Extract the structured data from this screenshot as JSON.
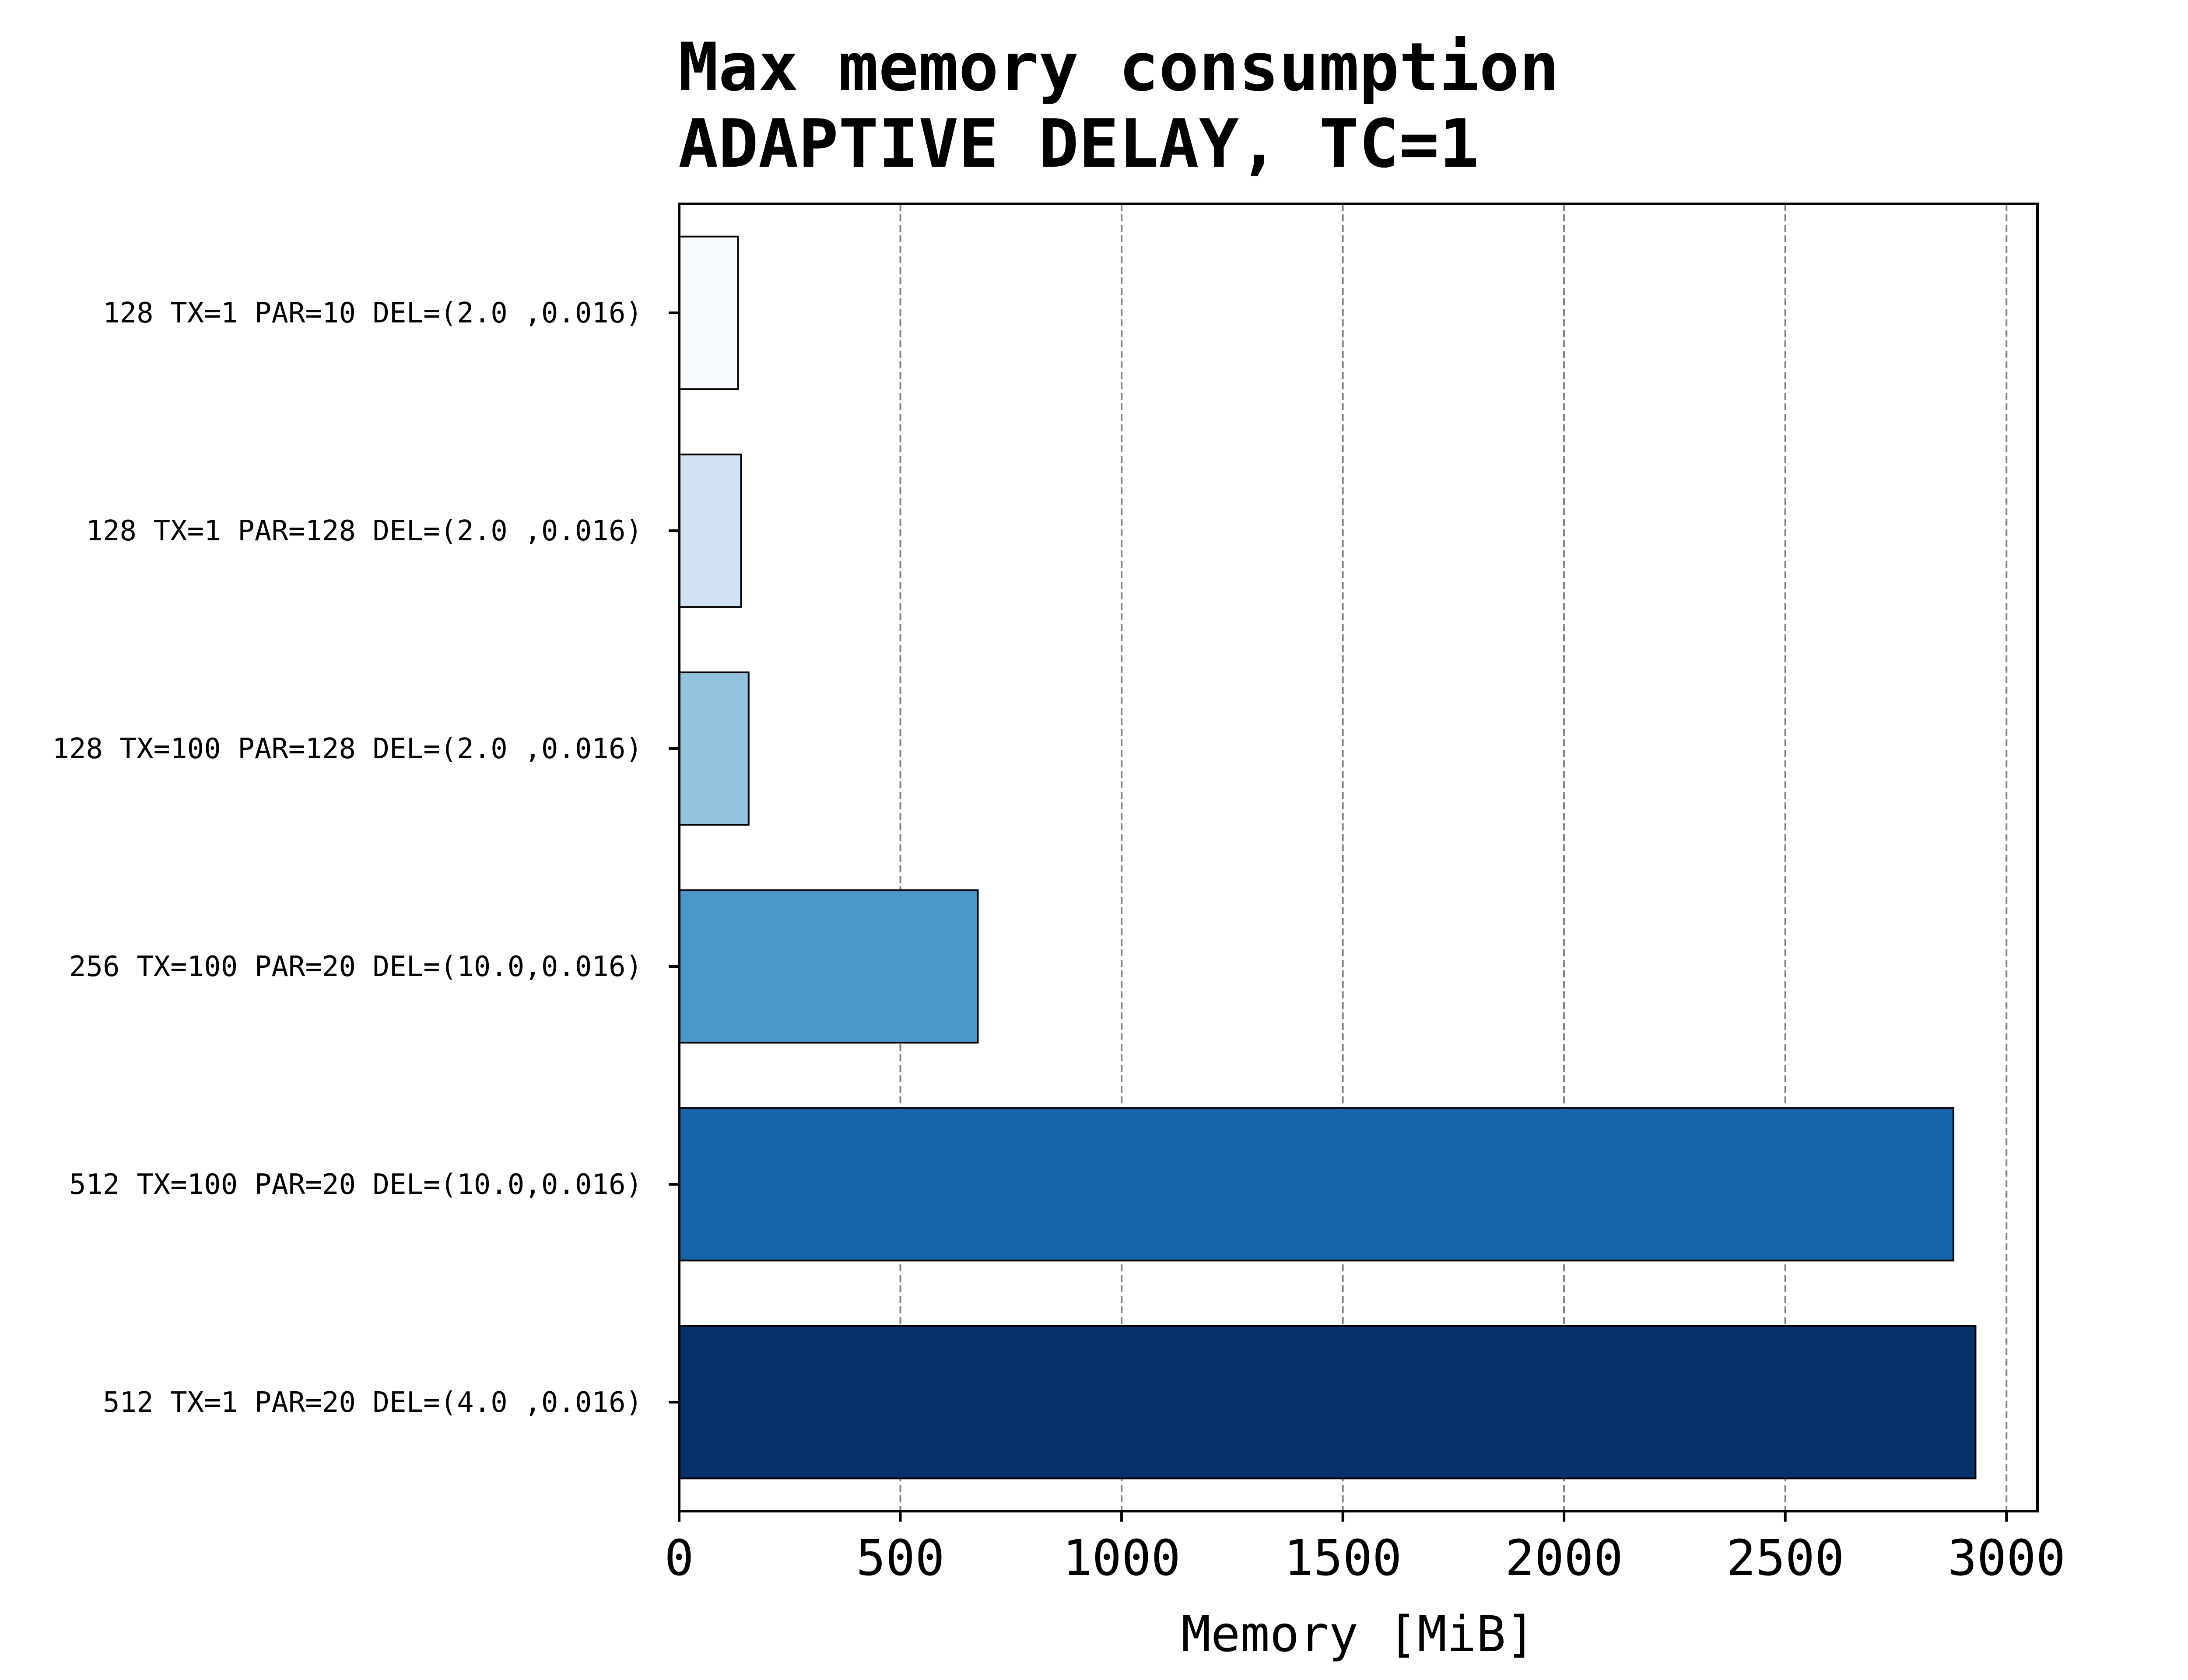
{
  "chart_data": {
    "type": "bar",
    "orientation": "horizontal",
    "title_lines": [
      "Max memory consumption",
      "ADAPTIVE DELAY,   TC=1"
    ],
    "xlabel": "Memory [MiB]",
    "ylabel": "",
    "xlim": [
      0,
      3070
    ],
    "xticks": [
      0,
      500,
      1000,
      1500,
      2000,
      2500,
      3000
    ],
    "grid": "x, dashed",
    "categories": [
      "128  TX=1    PAR=10  DEL=(2.0 ,0.016)",
      "128  TX=1    PAR=128 DEL=(2.0 ,0.016)",
      "128  TX=100  PAR=128 DEL=(2.0 ,0.016)",
      "256  TX=100  PAR=20  DEL=(10.0,0.016)",
      "512  TX=100  PAR=20  DEL=(10.0,0.016)",
      "512  TX=1    PAR=20  DEL=(4.0 ,0.016)"
    ],
    "values": [
      133,
      140,
      157,
      675,
      2880,
      2930
    ],
    "colors": [
      "#f7fbff",
      "#cfe1f2",
      "#93c4de",
      "#4a98c9",
      "#1764ab",
      "#08306b"
    ]
  }
}
